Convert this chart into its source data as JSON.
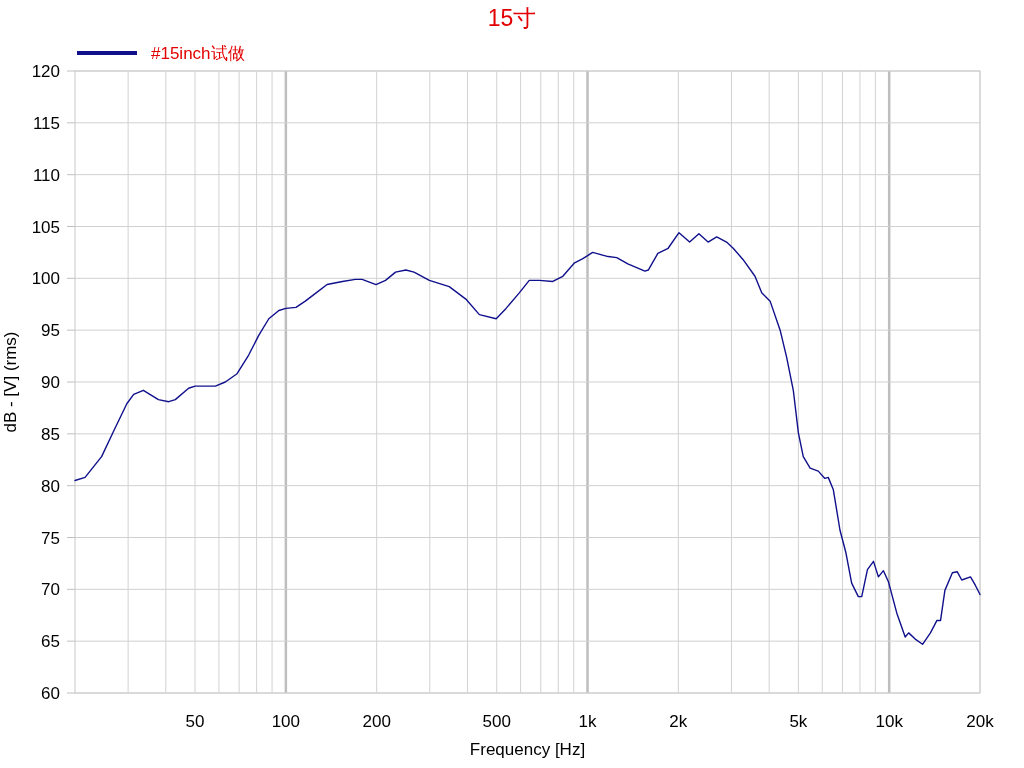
{
  "chart_data": {
    "type": "line",
    "title": "15寸",
    "xlabel": "Frequency [Hz]",
    "ylabel": "dB - [V] (rms)",
    "x": [
      20,
      21.6,
      24.5,
      26.8,
      29.7,
      31.3,
      33.7,
      37.8,
      40.9,
      43,
      47.6,
      50,
      58.4,
      63,
      68.9,
      75.3,
      81.3,
      87.8,
      94.8,
      100,
      108,
      116,
      126,
      137,
      154,
      170,
      179,
      199,
      214,
      231,
      250,
      266,
      299,
      348,
      395,
      438,
      498,
      537,
      594,
      641,
      692,
      767,
      828,
      906,
      965,
      1040,
      1170,
      1250,
      1360,
      1550,
      1590,
      1710,
      1850,
      2010,
      2180,
      2340,
      2510,
      2680,
      2890,
      3040,
      3280,
      3590,
      3780,
      4030,
      4350,
      4570,
      4810,
      5000,
      5190,
      5470,
      5820,
      6120,
      6280,
      6530,
      6870,
      7190,
      7510,
      7900,
      8110,
      8470,
      8870,
      9210,
      9570,
      9950,
      10600,
      11300,
      11600,
      12200,
      12900,
      13700,
      14400,
      14800,
      15300,
      16200,
      16800,
      17400,
      18600,
      19300,
      20000
    ],
    "series": [
      {
        "name": "#15inch试做",
        "color": "#10108c",
        "values": [
          80.5,
          80.8,
          82.8,
          85.2,
          87.9,
          88.8,
          89.2,
          88.3,
          88.1,
          88.3,
          89.4,
          89.6,
          89.6,
          90.0,
          90.8,
          92.6,
          94.5,
          96.1,
          96.9,
          97.1,
          97.2,
          97.8,
          98.6,
          99.4,
          99.7,
          99.9,
          99.9,
          99.4,
          99.8,
          100.6,
          100.8,
          100.6,
          99.8,
          99.2,
          98.0,
          96.5,
          96.1,
          97.1,
          98.6,
          99.8,
          99.8,
          99.7,
          100.2,
          101.5,
          101.9,
          102.5,
          102.1,
          102.0,
          101.4,
          100.7,
          100.8,
          102.4,
          102.9,
          104.4,
          103.5,
          104.3,
          103.5,
          104.0,
          103.5,
          102.9,
          101.8,
          100.2,
          98.6,
          97.8,
          95.0,
          92.4,
          89.2,
          85.1,
          82.8,
          81.7,
          81.4,
          80.7,
          80.8,
          79.6,
          75.7,
          73.5,
          70.6,
          69.3,
          69.3,
          71.9,
          72.7,
          71.2,
          71.8,
          70.7,
          67.7,
          65.4,
          65.8,
          65.2,
          64.7,
          65.8,
          67.0,
          67.0,
          69.9,
          71.6,
          71.7,
          70.9,
          71.2,
          70.4,
          69.5
        ]
      }
    ],
    "xlim": [
      20,
      20000
    ],
    "ylim": [
      60,
      120
    ],
    "xticks": [
      {
        "value": 30,
        "label": null
      },
      {
        "value": 40,
        "label": null
      },
      50,
      {
        "value": 60,
        "label": null
      },
      {
        "value": 70,
        "label": null
      },
      {
        "value": 80,
        "label": null
      },
      {
        "value": 90,
        "label": null
      },
      100,
      200,
      {
        "value": 300,
        "label": null
      },
      {
        "value": 400,
        "label": null
      },
      500,
      {
        "value": 600,
        "label": null
      },
      {
        "value": 700,
        "label": null
      },
      {
        "value": 800,
        "label": null
      },
      {
        "value": 900,
        "label": null
      },
      {
        "value": 1000,
        "label": "1k"
      },
      {
        "value": 2000,
        "label": "2k"
      },
      {
        "value": 3000,
        "label": null
      },
      {
        "value": 4000,
        "label": null
      },
      {
        "value": 5000,
        "label": "5k"
      },
      {
        "value": 6000,
        "label": null
      },
      {
        "value": 7000,
        "label": null
      },
      {
        "value": 8000,
        "label": null
      },
      {
        "value": 9000,
        "label": null
      },
      {
        "value": 10000,
        "label": "10k"
      },
      {
        "value": 20000,
        "label": "20k"
      }
    ],
    "yticks": [
      60,
      65,
      70,
      75,
      80,
      85,
      90,
      95,
      100,
      105,
      110,
      115,
      120
    ],
    "log": "x",
    "grid": true,
    "legend": "top left"
  }
}
